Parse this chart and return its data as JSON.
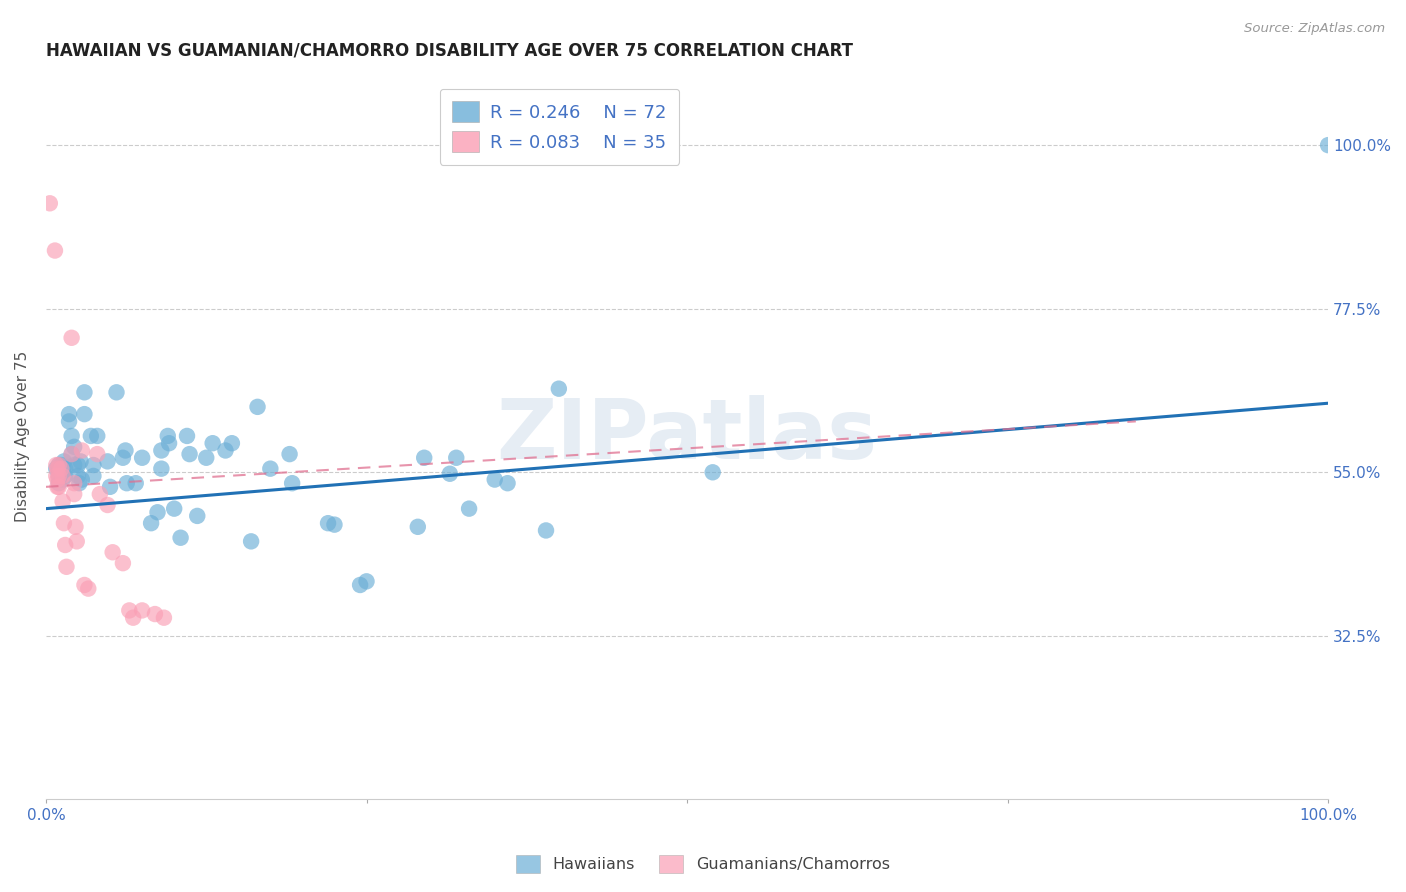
{
  "title": "HAWAIIAN VS GUAMANIAN/CHAMORRO DISABILITY AGE OVER 75 CORRELATION CHART",
  "source": "Source: ZipAtlas.com",
  "ylabel": "Disability Age Over 75",
  "xlim": [
    0.0,
    1.0
  ],
  "ylim": [
    0.1,
    1.1
  ],
  "xticks": [
    0.0,
    0.25,
    0.5,
    0.75,
    1.0
  ],
  "xticklabels": [
    "0.0%",
    "",
    "",
    "",
    "100.0%"
  ],
  "ytick_positions": [
    0.325,
    0.55,
    0.775,
    1.0
  ],
  "ytick_labels": [
    "32.5%",
    "55.0%",
    "77.5%",
    "100.0%"
  ],
  "legend_blue_r": "R = 0.246",
  "legend_blue_n": "N = 72",
  "legend_pink_r": "R = 0.083",
  "legend_pink_n": "N = 35",
  "label_hawaiians": "Hawaiians",
  "label_guamanians": "Guamanians/Chamorros",
  "watermark": "ZIPatlas",
  "blue_color": "#6baed6",
  "pink_color": "#fa9fb5",
  "blue_line_color": "#2171b5",
  "pink_line_color": "#e07090",
  "title_color": "#222222",
  "axis_label_color": "#4472c4",
  "tick_label_color": "#4472c4",
  "blue_scatter": [
    [
      0.008,
      0.555
    ],
    [
      0.01,
      0.555
    ],
    [
      0.01,
      0.56
    ],
    [
      0.01,
      0.545
    ],
    [
      0.01,
      0.535
    ],
    [
      0.012,
      0.56
    ],
    [
      0.013,
      0.555
    ],
    [
      0.013,
      0.54
    ],
    [
      0.013,
      0.55
    ],
    [
      0.014,
      0.565
    ],
    [
      0.015,
      0.555
    ],
    [
      0.015,
      0.545
    ],
    [
      0.018,
      0.63
    ],
    [
      0.018,
      0.62
    ],
    [
      0.02,
      0.6
    ],
    [
      0.02,
      0.575
    ],
    [
      0.022,
      0.585
    ],
    [
      0.022,
      0.56
    ],
    [
      0.025,
      0.56
    ],
    [
      0.025,
      0.545
    ],
    [
      0.026,
      0.535
    ],
    [
      0.027,
      0.565
    ],
    [
      0.028,
      0.54
    ],
    [
      0.03,
      0.66
    ],
    [
      0.03,
      0.63
    ],
    [
      0.035,
      0.6
    ],
    [
      0.037,
      0.56
    ],
    [
      0.037,
      0.545
    ],
    [
      0.04,
      0.6
    ],
    [
      0.048,
      0.565
    ],
    [
      0.05,
      0.53
    ],
    [
      0.055,
      0.66
    ],
    [
      0.06,
      0.57
    ],
    [
      0.062,
      0.58
    ],
    [
      0.063,
      0.535
    ],
    [
      0.07,
      0.535
    ],
    [
      0.075,
      0.57
    ],
    [
      0.082,
      0.48
    ],
    [
      0.087,
      0.495
    ],
    [
      0.09,
      0.555
    ],
    [
      0.09,
      0.58
    ],
    [
      0.095,
      0.6
    ],
    [
      0.096,
      0.59
    ],
    [
      0.1,
      0.5
    ],
    [
      0.105,
      0.46
    ],
    [
      0.11,
      0.6
    ],
    [
      0.112,
      0.575
    ],
    [
      0.118,
      0.49
    ],
    [
      0.125,
      0.57
    ],
    [
      0.13,
      0.59
    ],
    [
      0.14,
      0.58
    ],
    [
      0.145,
      0.59
    ],
    [
      0.16,
      0.455
    ],
    [
      0.165,
      0.64
    ],
    [
      0.175,
      0.555
    ],
    [
      0.19,
      0.575
    ],
    [
      0.192,
      0.535
    ],
    [
      0.22,
      0.48
    ],
    [
      0.225,
      0.478
    ],
    [
      0.245,
      0.395
    ],
    [
      0.25,
      0.4
    ],
    [
      0.29,
      0.475
    ],
    [
      0.295,
      0.57
    ],
    [
      0.315,
      0.548
    ],
    [
      0.32,
      0.57
    ],
    [
      0.33,
      0.5
    ],
    [
      0.35,
      0.54
    ],
    [
      0.36,
      0.535
    ],
    [
      0.39,
      0.47
    ],
    [
      0.4,
      0.665
    ],
    [
      0.52,
      0.55
    ],
    [
      1.0,
      1.0
    ]
  ],
  "pink_scatter": [
    [
      0.003,
      0.92
    ],
    [
      0.007,
      0.855
    ],
    [
      0.008,
      0.56
    ],
    [
      0.008,
      0.545
    ],
    [
      0.009,
      0.555
    ],
    [
      0.009,
      0.54
    ],
    [
      0.009,
      0.53
    ],
    [
      0.01,
      0.56
    ],
    [
      0.01,
      0.545
    ],
    [
      0.01,
      0.53
    ],
    [
      0.012,
      0.555
    ],
    [
      0.013,
      0.545
    ],
    [
      0.013,
      0.51
    ],
    [
      0.014,
      0.48
    ],
    [
      0.015,
      0.45
    ],
    [
      0.016,
      0.42
    ],
    [
      0.02,
      0.735
    ],
    [
      0.02,
      0.575
    ],
    [
      0.022,
      0.535
    ],
    [
      0.022,
      0.52
    ],
    [
      0.023,
      0.475
    ],
    [
      0.024,
      0.455
    ],
    [
      0.028,
      0.58
    ],
    [
      0.03,
      0.395
    ],
    [
      0.033,
      0.39
    ],
    [
      0.04,
      0.575
    ],
    [
      0.042,
      0.52
    ],
    [
      0.048,
      0.505
    ],
    [
      0.052,
      0.44
    ],
    [
      0.06,
      0.425
    ],
    [
      0.065,
      0.36
    ],
    [
      0.068,
      0.35
    ],
    [
      0.075,
      0.36
    ],
    [
      0.085,
      0.355
    ],
    [
      0.092,
      0.35
    ]
  ],
  "blue_trendline_x": [
    0.0,
    1.0
  ],
  "blue_trendline_y": [
    0.5,
    0.645
  ],
  "pink_trendline_x": [
    0.0,
    0.85
  ],
  "pink_trendline_y": [
    0.53,
    0.62
  ]
}
